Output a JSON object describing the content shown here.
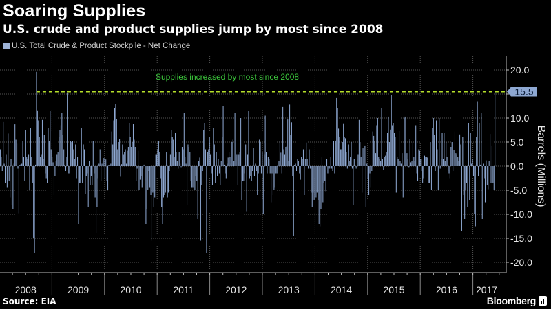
{
  "header": {
    "title": "Soaring Supplies",
    "subtitle": "U.S. crude and product supplies jump by most since 2008"
  },
  "footer": {
    "source": "Source: EIA",
    "brand": "Bloomberg"
  },
  "chart_data": {
    "type": "bar",
    "legend": "U.S. Total Crude & Product Stockpile - Net Change",
    "legend_position": "top-left",
    "ylabel": "Barrels (Millions)",
    "y_axis_side": "right",
    "ylim": [
      -22,
      22
    ],
    "yticks": [
      20,
      15,
      10,
      5,
      0,
      -5,
      -10,
      -15,
      -20
    ],
    "ytick_labels": [
      "20.0",
      "",
      "10.0",
      "5.0",
      "0.0",
      "-5.0",
      "-10.0",
      "-15.0",
      "-20.0"
    ],
    "grid": true,
    "xlim": [
      2008,
      2017.42
    ],
    "x_tick_labels": [
      "2008",
      "2009",
      "2010",
      "2011",
      "2012",
      "2013",
      "2014",
      "2015",
      "2016",
      "2017"
    ],
    "frequency": "weekly",
    "reference_line": {
      "value": 15.5,
      "label": "15.5",
      "style": "dashed",
      "color": "#b6e02a"
    },
    "annotation": "Supplies increased by most since 2008",
    "colors": {
      "bars": "#8ea8d2",
      "annotation": "#3cc83c",
      "callout": "#8ea8d2"
    },
    "values": [
      -7.8,
      3.5,
      2,
      -1,
      9.3,
      0.5,
      -3.5,
      2.5,
      -4.5,
      6.8,
      -3,
      -6.5,
      1.5,
      -8,
      -9,
      0.5,
      8.7,
      5.5,
      4.8,
      -0.5,
      -9.8,
      0.2,
      0.4,
      0.5,
      5.2,
      2,
      -3,
      7.5,
      2,
      1.5,
      2.5,
      -5,
      8,
      2,
      -3.5,
      -15,
      -18,
      0.3,
      19.6,
      11.6,
      9.5,
      6,
      2,
      2.5,
      9.6,
      1.5,
      6.5,
      -1.5,
      -2.5,
      -3.5,
      8,
      5.2,
      11.5,
      3.5,
      2,
      0.8,
      -6,
      -2,
      1,
      2.5,
      3,
      6,
      7.5,
      8.5,
      11,
      6.5,
      3.5,
      0.3,
      -1,
      2,
      15.3,
      -1.5,
      -1.5,
      5.2,
      5,
      5.2,
      3.5,
      1.5,
      4.5,
      -2.5,
      2,
      -12,
      -3.5,
      -3.5,
      8,
      -3.5,
      4.5,
      3.5,
      -5.8,
      -2,
      -1.5,
      -8.5,
      1,
      -4,
      -2,
      -4,
      5.2,
      -1.5,
      -6.5,
      -14,
      -8.5,
      -2.5,
      0.5,
      3.5,
      -3,
      0.5,
      1,
      1.7,
      -2.5,
      1.4,
      -3,
      -5,
      0.2,
      0.3,
      0.5,
      7.2,
      4.5,
      9.5,
      12,
      13,
      9.8,
      3.5,
      5,
      5.6,
      -2.2,
      0.4,
      4.5,
      2.5,
      3,
      3.5,
      0.5,
      3.2,
      4,
      9,
      6,
      4,
      5,
      8.8,
      5.5,
      4,
      -3,
      -0.5,
      3.2,
      -5,
      -2.8,
      -2,
      -4.5,
      -0.5,
      0.3,
      -3,
      -12,
      -9,
      -5,
      -1,
      -4.5,
      -6,
      -15.5,
      -5.5,
      -8.5,
      -6.5,
      2.5,
      2.5,
      3.5,
      5.2,
      3,
      -2.5,
      -8.5,
      -12,
      -6.5,
      -6,
      -5.5,
      3,
      -6.5,
      -5.5,
      -1,
      2.5,
      7.5,
      6,
      5.5,
      2,
      7,
      3,
      1,
      -0.5,
      3,
      0.5,
      -0.2,
      4,
      3.5,
      11,
      2,
      0.5,
      -8,
      4.5,
      4,
      3,
      -3,
      -4.5,
      -4.5,
      1,
      -5,
      -2,
      -3,
      -11,
      1,
      1.8,
      -15.5,
      -4,
      -1,
      7.5,
      9,
      3.5,
      -18,
      3,
      3.5,
      6,
      2.5,
      -1.5,
      -4,
      8,
      4.5,
      -3.5,
      3,
      -2,
      1.5,
      -1.5,
      -4,
      1,
      6,
      12.5,
      0.3,
      -1.5,
      -2.5,
      0.5,
      1.8,
      3,
      2,
      0.5,
      5,
      5.5,
      1,
      11,
      2,
      2.5,
      -4,
      2.5,
      3,
      10,
      -7,
      -3,
      -3,
      -1.5,
      4.5,
      -9.5,
      2.5,
      11.5,
      -2.5,
      -2,
      -3,
      -1,
      3.8,
      -2,
      0.5,
      -1,
      -6,
      -1.5,
      5.5,
      5,
      -1.5,
      3,
      -10,
      2.5,
      10.5,
      3,
      -1.5,
      2,
      1.5,
      -1.5,
      -7.5,
      -1.5,
      -6,
      -5,
      -4.5,
      -1.5,
      -1.5,
      0,
      1,
      5.2,
      2.8,
      -1.5,
      12.3,
      3.5,
      2.5,
      4,
      4.2,
      9.7,
      1,
      12.8,
      6.5,
      9.1,
      -2,
      -14.5,
      0.2,
      0.5,
      -1,
      1.5,
      1,
      -1.5,
      -2.8,
      2,
      1.5,
      3.5,
      -6,
      1.5,
      4.9,
      1.5,
      -0.5,
      3.5,
      -0.5,
      -5.5,
      -8.5,
      -5.5,
      -7,
      -11.8,
      -6.5,
      -5.5,
      -7,
      -12,
      -12.5,
      -9,
      2,
      -7.5,
      -3.5,
      -3,
      -5.2,
      1.5,
      -1.5,
      -0.5,
      -0.5,
      2,
      -0.5,
      -1,
      5.2,
      -1.5,
      5.3,
      14.3,
      12,
      7.8,
      6,
      3.5,
      3.5,
      5,
      8.9,
      6,
      5.8,
      3,
      -0.5,
      4.5,
      1,
      2,
      5,
      -0.5,
      -8,
      1.5,
      0,
      -0.5,
      1.5,
      2.5,
      9.6,
      5,
      2,
      -5.5,
      3.7,
      1.5,
      4.3,
      -8.5,
      0.5,
      -2.5,
      -6,
      -1.5,
      -4.5,
      -1,
      7.2,
      6.3,
      5.2,
      2.7,
      8.5,
      10,
      2,
      1.5,
      1,
      12,
      1.5,
      -0.8,
      2,
      2.2,
      3,
      7,
      10.3,
      5,
      7.6,
      14.8,
      8.5,
      9,
      7,
      6,
      -5.5,
      2,
      1.5,
      7.3,
      1,
      0.5,
      2.7,
      -6.5,
      10,
      10.3,
      1,
      2.7,
      1.5,
      -0.2,
      5.6,
      0.8,
      1,
      5,
      2,
      1,
      8.5,
      -1.5,
      -3,
      3.5,
      3.2,
      1.5,
      -1,
      -3.5,
      -2.5,
      2.2,
      2,
      2,
      1.8,
      -3.5,
      -3.5,
      5,
      -5,
      8,
      10,
      6.5,
      -1,
      9.5,
      3.5,
      -5,
      10,
      -0.5,
      1.5,
      7,
      1.5,
      7,
      1,
      5,
      2,
      -1,
      -1.5,
      -2.5,
      4,
      5,
      -1,
      3.3,
      7.2,
      2.7,
      2.5,
      2,
      1,
      6.6,
      4.5,
      -13.5,
      6,
      -6,
      -11,
      -5,
      -3.5,
      -8.5,
      9,
      -7,
      7,
      0.5,
      1.5,
      -2,
      -10,
      -12.5,
      6,
      13.5,
      -2,
      9,
      0.3,
      11,
      -11,
      0.5,
      -2.5,
      -7.5,
      1.2,
      -4,
      -4.8,
      1,
      6.7,
      -3.5,
      4.3,
      -3.5,
      -5,
      15.5
    ]
  }
}
